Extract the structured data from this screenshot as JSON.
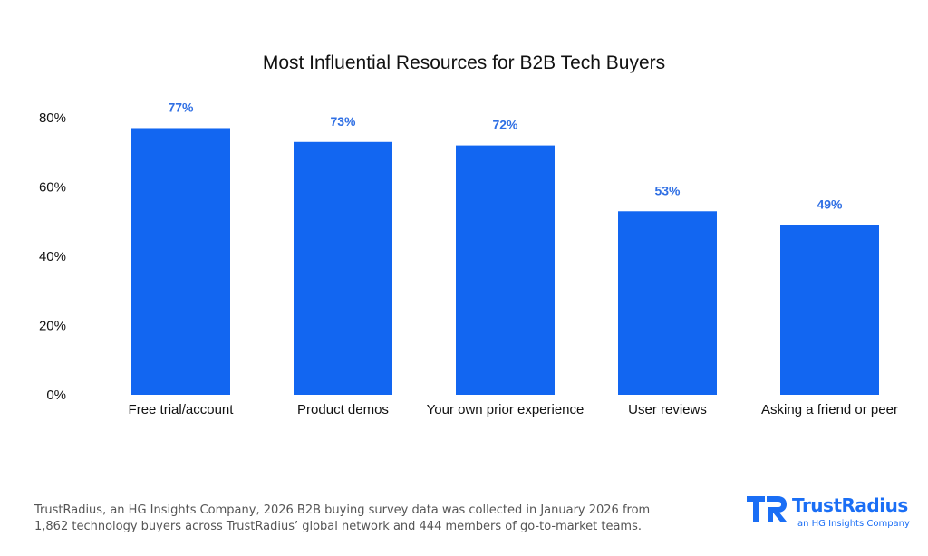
{
  "chart_data": {
    "type": "bar",
    "title": "Most Influential Resources for B2B Tech Buyers",
    "categories": [
      "Free trial/account",
      "Product demos",
      "Your own prior experience",
      "User reviews",
      "Asking a friend or peer"
    ],
    "values": [
      77,
      73,
      72,
      53,
      49
    ],
    "data_labels": [
      "77%",
      "73%",
      "72%",
      "53%",
      "49%"
    ],
    "y_ticks": [
      0,
      20,
      40,
      60,
      80
    ],
    "y_tick_labels": [
      "0%",
      "20%",
      "40%",
      "60%",
      "80%"
    ],
    "ylim": [
      0,
      80
    ],
    "grid": false,
    "bar_color": "#1266f1",
    "label_color": "#2f6fe4"
  },
  "footnote": {
    "line1": "TrustRadius, an HG Insights Company, 2026 B2B buying survey data was collected in January 2026 from",
    "line2": "1,862 technology buyers across TrustRadius’ global network and 444 members of go-to-market teams."
  },
  "brand": {
    "name": "TrustRadius",
    "tagline": "an HG Insights Company",
    "logo_icon": "trustradius-logo-icon",
    "color": "#1a6ef5"
  }
}
